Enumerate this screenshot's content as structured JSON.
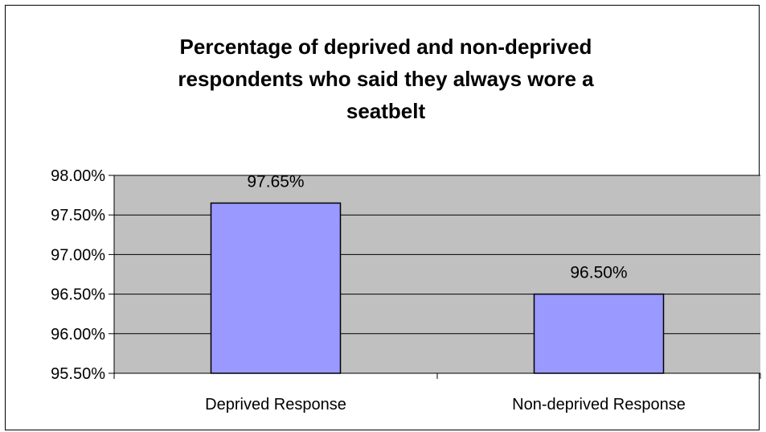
{
  "chart_data": {
    "type": "bar",
    "title_lines": [
      "Percentage of deprived and non-deprived",
      "respondents who said they always wore a",
      "seatbelt"
    ],
    "categories": [
      "Deprived Response",
      "Non-deprived Response"
    ],
    "values": [
      97.65,
      96.5
    ],
    "data_labels": [
      "97.65%",
      "96.50%"
    ],
    "yticks": [
      95.5,
      96.0,
      96.5,
      97.0,
      97.5,
      98.0
    ],
    "ytick_labels": [
      "95.50%",
      "96.00%",
      "96.50%",
      "97.00%",
      "97.50%",
      "98.00%"
    ],
    "ylim": [
      95.5,
      98.0
    ],
    "grid": true,
    "legend": "none",
    "colors": {
      "bar_fill": "#9999ff",
      "bar_stroke": "#000000",
      "plot_background": "#c0c0c0",
      "gridline": "#000000"
    }
  }
}
